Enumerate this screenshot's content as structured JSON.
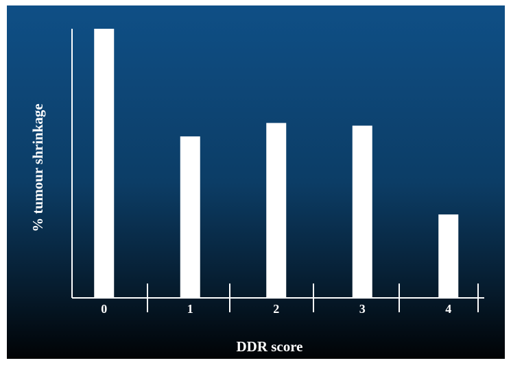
{
  "chart_data": {
    "type": "bar",
    "x_label": "DDR score",
    "y_label": "% tumour shrinkage",
    "categories": [
      "0",
      "1",
      "2",
      "3",
      "4"
    ],
    "values": [
      100,
      60,
      65,
      64,
      31
    ],
    "color": "#ffffff",
    "ylim": [
      0,
      100
    ]
  }
}
